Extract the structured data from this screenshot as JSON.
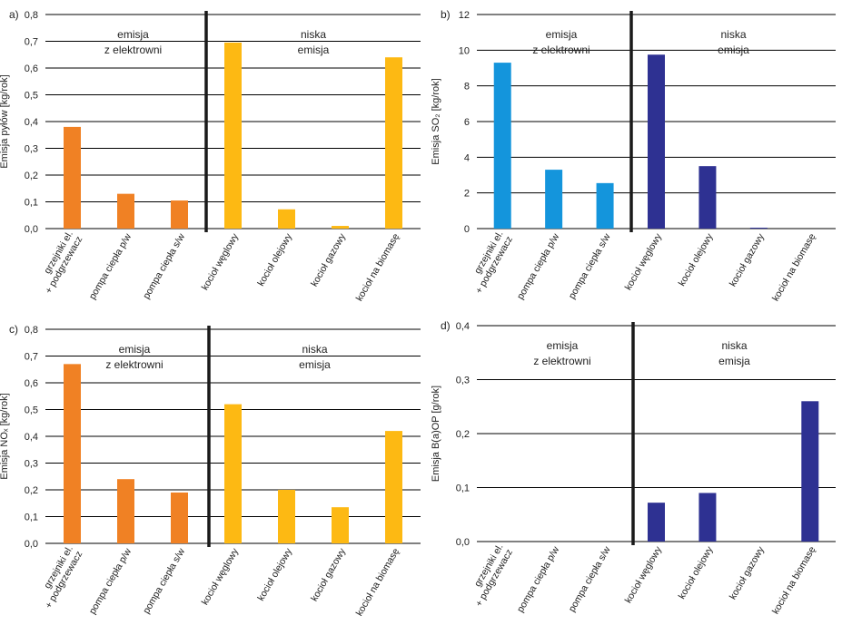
{
  "categories": [
    "grzejniki el.\n+ podgrzewacz",
    "pompa ciepła p/w",
    "pompa ciepła s/w",
    "kocioł węglowy",
    "kocioł olejowy",
    "kocioł gazowy",
    "kocioł na biomasę"
  ],
  "region_labels": {
    "left": [
      "emisja",
      "z elektrowni"
    ],
    "right": [
      "niska",
      "emisja"
    ]
  },
  "colors": {
    "orange": "#f08124",
    "yellow": "#fdb913",
    "blue": "#1495dc",
    "navy": "#2e3192",
    "grid": "#000000",
    "divider": "#1a1a1a"
  },
  "chart_data": [
    {
      "type": "bar",
      "panel": "a)",
      "ylabel": "Emisja pyłów [kg/rok]",
      "ylim": [
        0,
        0.8
      ],
      "ticks": [
        "0,0",
        "0,1",
        "0,2",
        "0,3",
        "0,4",
        "0,5",
        "0,6",
        "0,7",
        "0,8"
      ],
      "values": [
        0.38,
        0.13,
        0.105,
        0.695,
        0.072,
        0.01,
        0.64
      ],
      "bar_colors": [
        "orange",
        "orange",
        "orange",
        "yellow",
        "yellow",
        "yellow",
        "yellow"
      ]
    },
    {
      "type": "bar",
      "panel": "b)",
      "ylabel": "Emisja SO₂ [kg/rok]",
      "ylim": [
        0,
        12
      ],
      "ticks": [
        "0",
        "2",
        "4",
        "6",
        "8",
        "10",
        "12"
      ],
      "values": [
        9.3,
        3.3,
        2.55,
        9.75,
        3.5,
        0.05,
        0
      ],
      "bar_colors": [
        "blue",
        "blue",
        "blue",
        "navy",
        "navy",
        "navy",
        "navy"
      ]
    },
    {
      "type": "bar",
      "panel": "c)",
      "ylabel": "Emisja NOₓ [kg/rok]",
      "ylim": [
        0,
        0.8
      ],
      "ticks": [
        "0,0",
        "0,1",
        "0,2",
        "0,3",
        "0,4",
        "0,5",
        "0,6",
        "0,7",
        "0,8"
      ],
      "values": [
        0.67,
        0.24,
        0.19,
        0.52,
        0.2,
        0.135,
        0.42
      ],
      "bar_colors": [
        "orange",
        "orange",
        "orange",
        "yellow",
        "yellow",
        "yellow",
        "yellow"
      ]
    },
    {
      "type": "bar",
      "panel": "d)",
      "ylabel": "Emisja B(a)OP [g/rok]",
      "ylim": [
        0,
        0.4
      ],
      "ticks": [
        "0,0",
        "0,1",
        "0,2",
        "0,3",
        "0,4"
      ],
      "values": [
        0,
        0,
        0,
        0.072,
        0.09,
        0,
        0.26
      ],
      "bar_colors": [
        "navy",
        "navy",
        "navy",
        "navy",
        "navy",
        "navy",
        "navy"
      ]
    }
  ]
}
